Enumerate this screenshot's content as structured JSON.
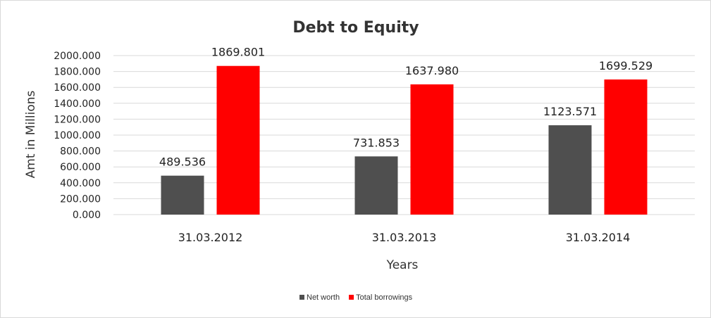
{
  "chart_data": {
    "type": "bar",
    "title": "Debt to Equity",
    "xlabel": "Years",
    "ylabel": "Amt in Millions",
    "categories": [
      "31.03.2012",
      "31.03.2013",
      "31.03.2014"
    ],
    "series": [
      {
        "name": "Net worth",
        "color": "#4f4f4f",
        "values": [
          489.536,
          731.853,
          1123.571
        ],
        "labels": [
          "489.536",
          "731.853",
          "1123.571"
        ]
      },
      {
        "name": "Total borrowings",
        "color": "#ff0000",
        "values": [
          1869.801,
          1637.98,
          1699.529
        ],
        "labels": [
          "1869.801",
          "1637.980",
          "1699.529"
        ]
      }
    ],
    "ylim": [
      0,
      2000
    ],
    "yticks": [
      "0.000",
      "200.000",
      "400.000",
      "600.000",
      "800.000",
      "1000.000",
      "1200.000",
      "1400.000",
      "1600.000",
      "1800.000",
      "2000.000"
    ],
    "grid": true,
    "legend_position": "bottom"
  }
}
